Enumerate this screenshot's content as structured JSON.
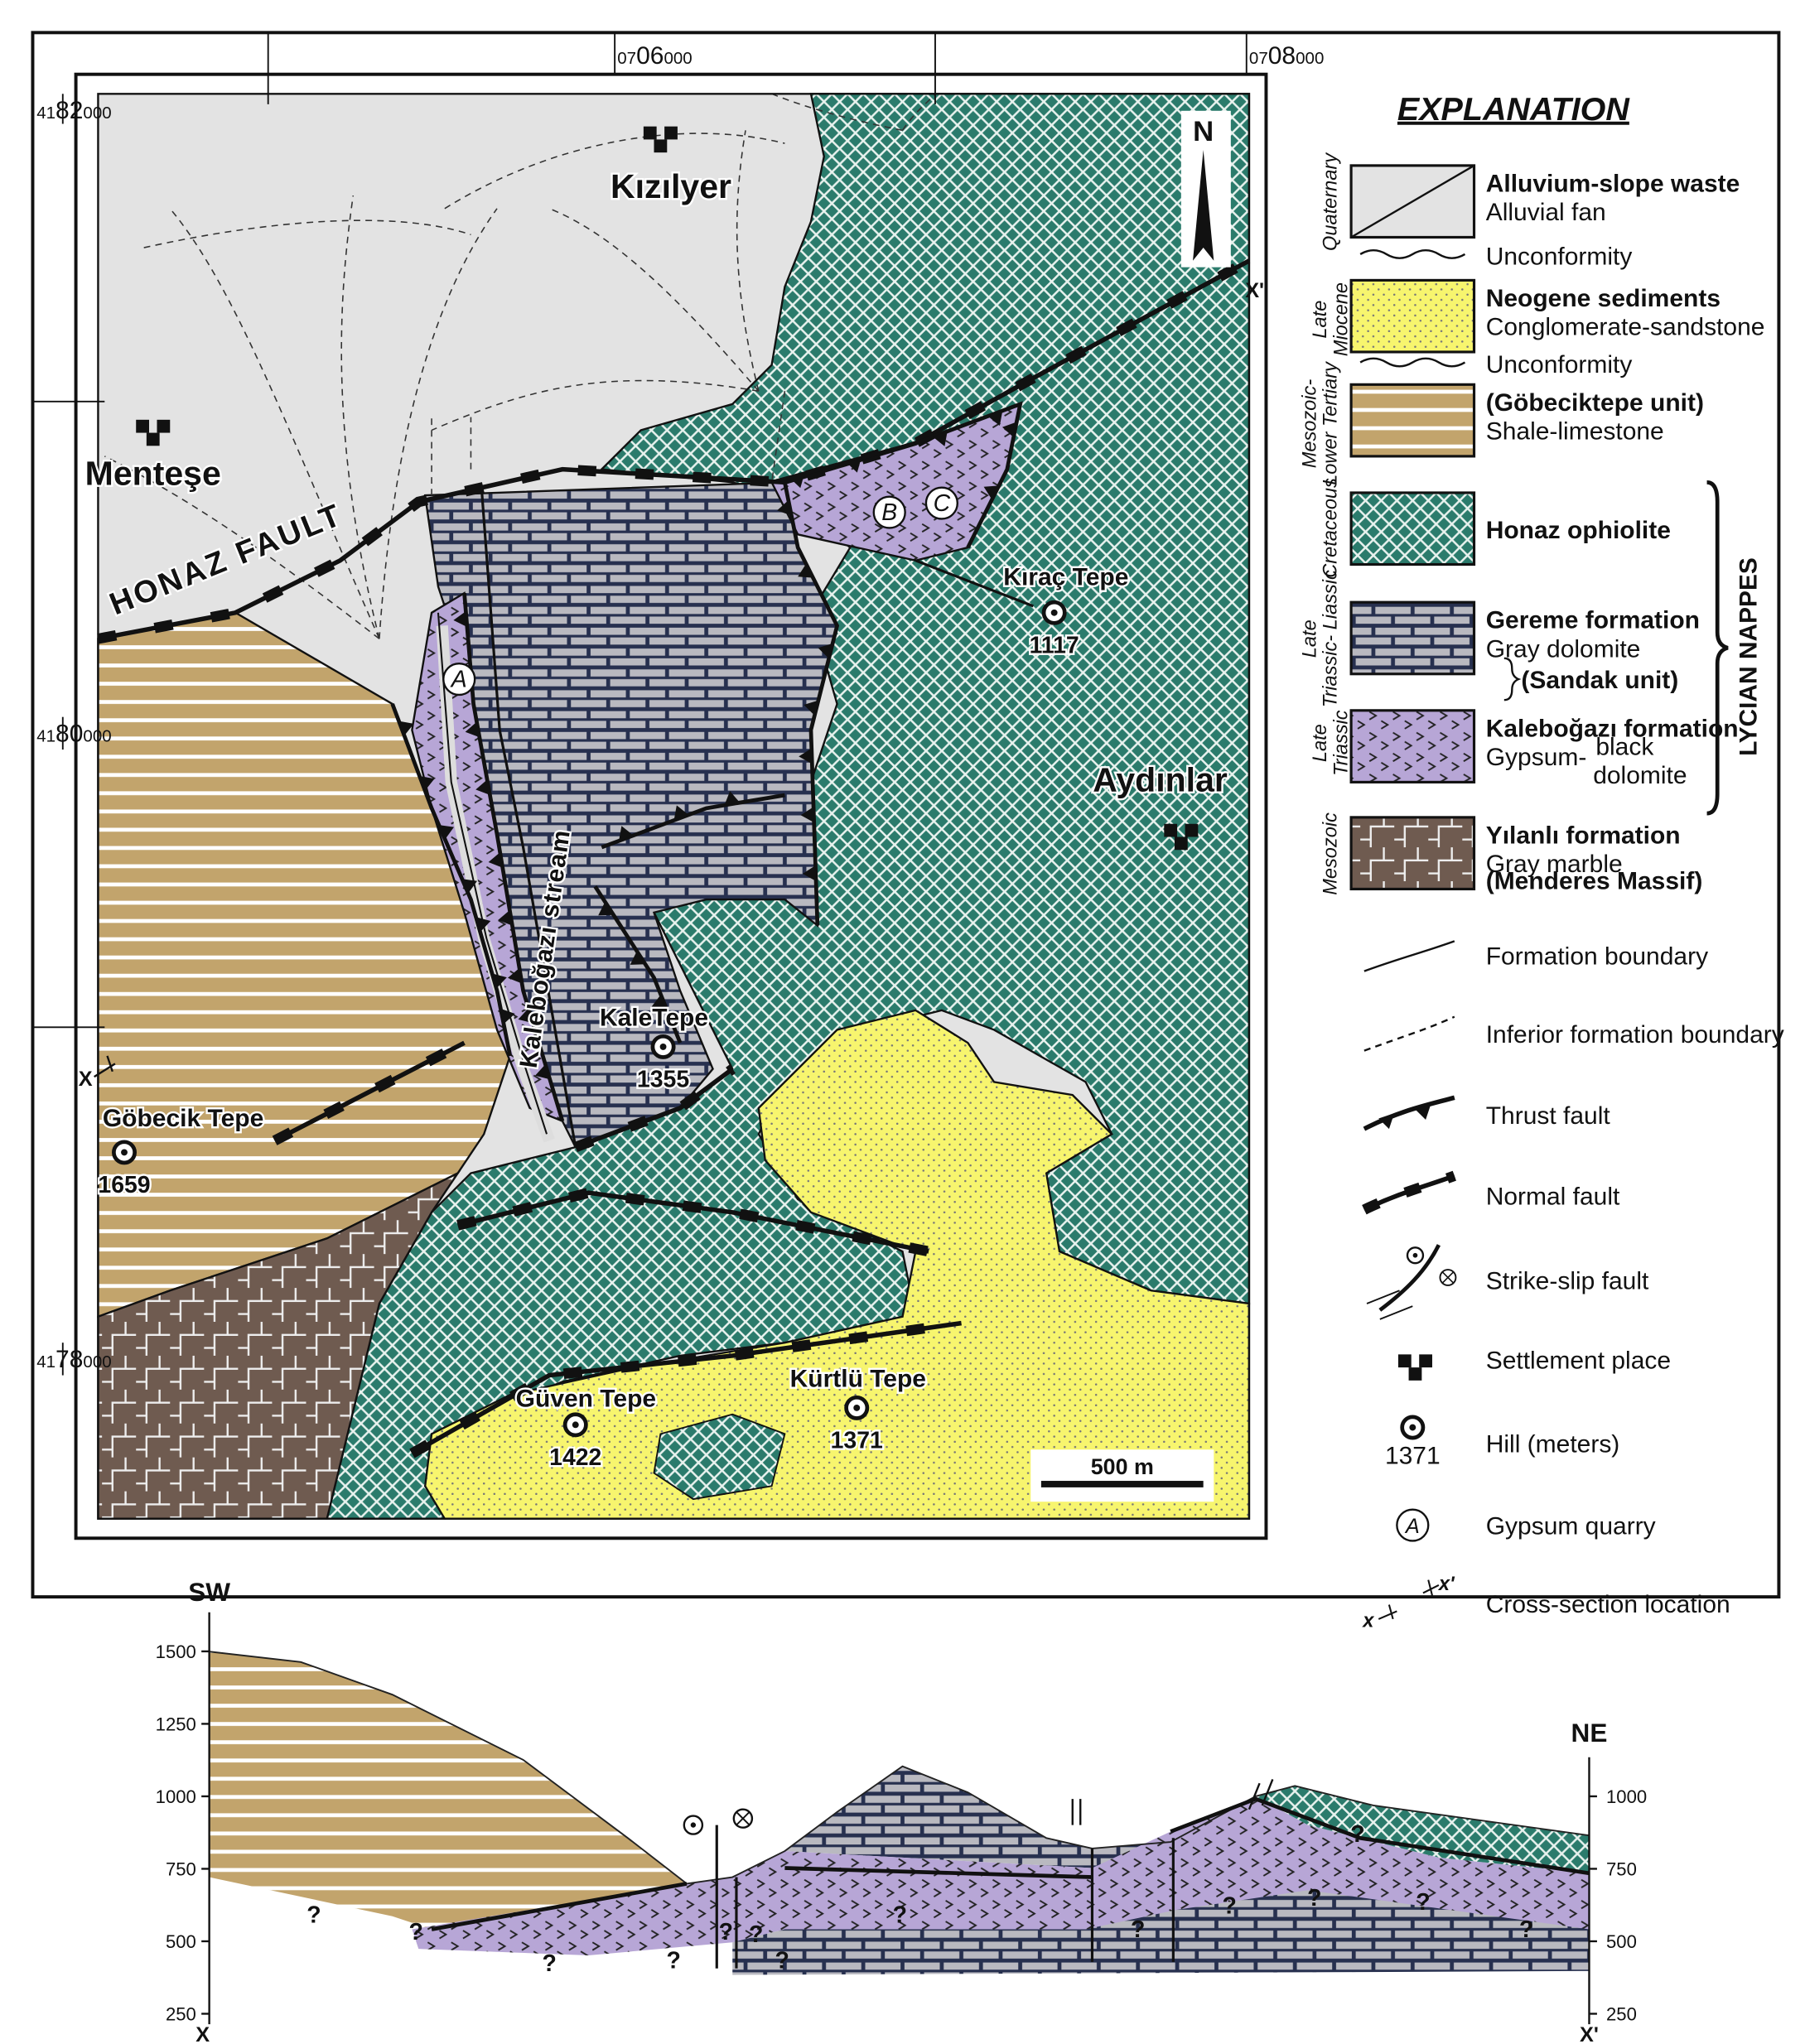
{
  "map": {
    "north": "N",
    "coords_x": [
      {
        "prefix": "07",
        "main": "06",
        "suffix": "000"
      },
      {
        "prefix": "07",
        "main": "08",
        "suffix": "000"
      }
    ],
    "coords_y": [
      {
        "prefix": "41",
        "main": "82",
        "suffix": "000"
      },
      {
        "prefix": "41",
        "main": "80",
        "suffix": "000"
      },
      {
        "prefix": "41",
        "main": "78",
        "suffix": "000"
      }
    ],
    "places": [
      "Kızılyer",
      "Menteşe",
      "Aydınlar"
    ],
    "hills": [
      {
        "name": "Kıraç Tepe",
        "elevation": 1117
      },
      {
        "name": "KaleTepe",
        "elevation": 1355
      },
      {
        "name": "Göbecik Tepe",
        "elevation": 1659
      },
      {
        "name": "Güven Tepe",
        "elevation": 1422
      },
      {
        "name": "Kürtlü Tepe",
        "elevation": 1371
      }
    ],
    "fault_label": "HONAZ FAULT",
    "stream": "Kaleboğazı stream",
    "quarries": [
      "A",
      "B",
      "C"
    ],
    "section_ends": [
      "X",
      "X'"
    ],
    "scale_bar": "500 m"
  },
  "legend": {
    "title": "EXPLANATION",
    "ages": [
      "Quaternary",
      "Late Miocene",
      "Mesozoic- Lower Tertiary",
      "Cretaceous",
      "Late Triassic- Liassic",
      "Late Triassic",
      "Mesozoic"
    ],
    "units": [
      {
        "name": "Alluvium-slope waste",
        "desc": "Alluvial fan"
      },
      {
        "name": "Neogene sediments",
        "desc": "Conglomerate-sandstone"
      },
      {
        "name": "(Göbeciktepe unit)",
        "desc": "Shale-limestone"
      },
      {
        "name": "Honaz ophiolite"
      },
      {
        "name": "Gereme formation",
        "desc": "Gray dolomite"
      },
      {
        "name": "Kaleboğazı formation",
        "desc": "Gypsum-",
        "desc2": "black",
        "desc3": "dolomite"
      },
      {
        "name": "Yılanlı formation",
        "desc": "Gray marble",
        "desc2": "(Menderes Massif)"
      }
    ],
    "unconformity": "Unconformity",
    "sandak": "(Sandak unit)",
    "nappes": "LYCIAN NAPPES",
    "symbols": [
      "Formation boundary",
      "Inferior formation boundary",
      "Thrust fault",
      "Normal fault",
      "Strike-slip fault",
      "Settlement place",
      "Hill (meters)",
      "Gypsum quarry",
      "Cross-section location"
    ],
    "hill_example": 1371,
    "quarry_example": "A",
    "section_example": [
      "x",
      "x'"
    ]
  },
  "cross_section": {
    "left_end": "SW",
    "right_end": "NE",
    "left_ticks": [
      1500,
      1250,
      1000,
      750,
      500,
      250
    ],
    "right_ticks": [
      1000,
      750,
      500,
      250
    ],
    "ends": [
      "X",
      "X'"
    ],
    "unknown": "?"
  }
}
